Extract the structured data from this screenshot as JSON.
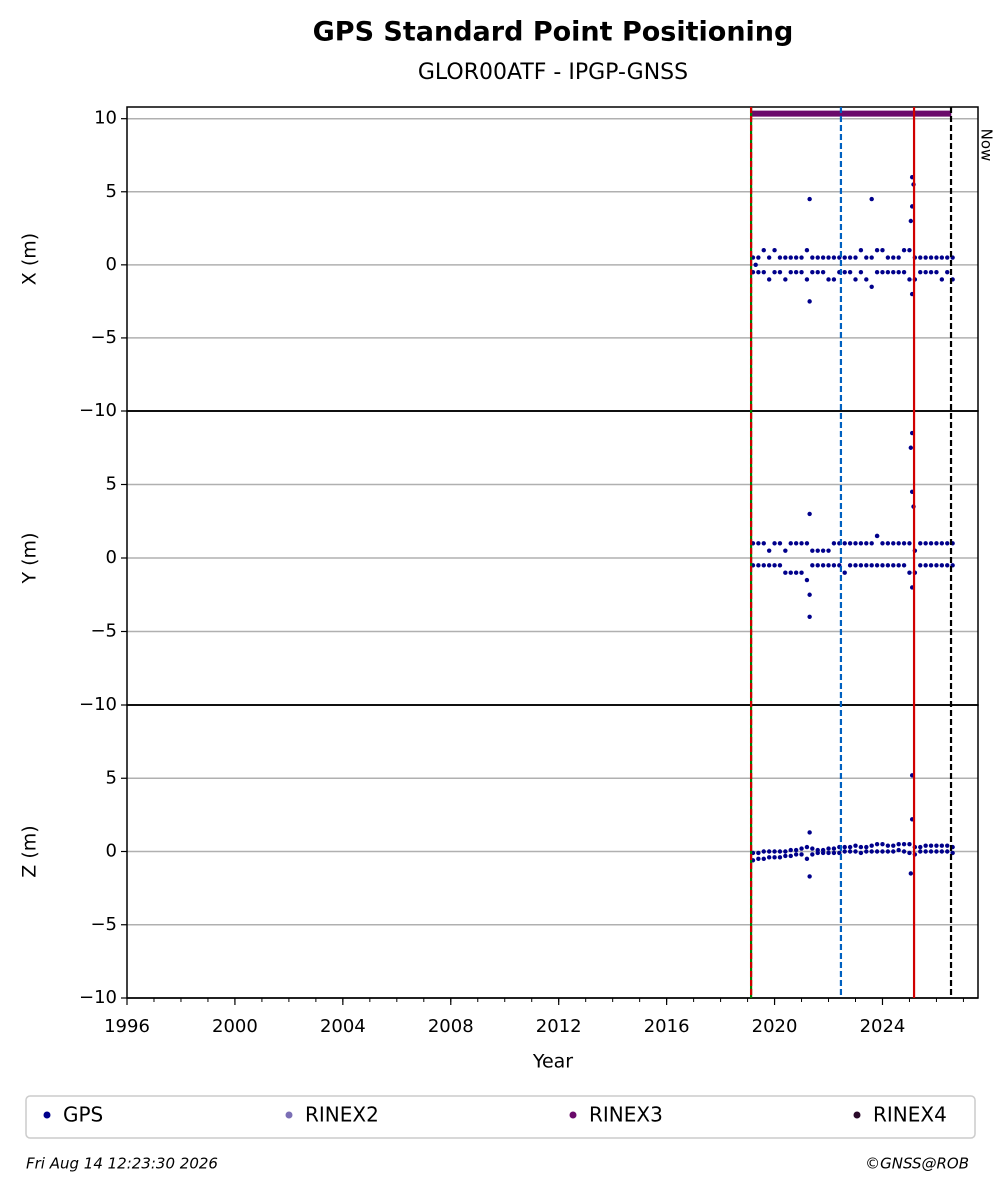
{
  "chart_data": {
    "type": "scatter",
    "title": "GPS Standard Point Positioning",
    "subtitle": "GLOR00ATF - IPGP-GNSS",
    "xlabel": "Year",
    "xlim": [
      1996,
      2027.54
    ],
    "xticks": [
      1996,
      2000,
      2004,
      2008,
      2012,
      2016,
      2020,
      2024
    ],
    "xminorticks": [
      1996,
      1997,
      1998,
      1999,
      2000,
      2001,
      2002,
      2003,
      2004,
      2005,
      2006,
      2007,
      2008,
      2009,
      2010,
      2011,
      2012,
      2013,
      2014,
      2015,
      2016,
      2017,
      2018,
      2019,
      2020,
      2021,
      2022,
      2023,
      2024,
      2025,
      2026,
      2027
    ],
    "grid": true,
    "panels": [
      {
        "ylabel": "X (m)",
        "ylim": [
          -10,
          10.8
        ],
        "yticks": [
          {
            "value": -10,
            "label": "−10"
          },
          {
            "value": -5,
            "label": "−5"
          },
          0,
          5,
          10
        ],
        "series": [
          {
            "name": "GPS",
            "color": "#00008b",
            "x": [
              2019.2,
              2019.4,
              2019.6,
              2019.8,
              2020.0,
              2020.2,
              2020.4,
              2020.6,
              2020.8,
              2021.0,
              2021.2,
              2021.4,
              2021.6,
              2021.8,
              2022.0,
              2022.2,
              2022.4,
              2022.6,
              2022.8,
              2023.0,
              2023.2,
              2023.4,
              2023.6,
              2023.8,
              2024.0,
              2024.2,
              2024.4,
              2024.6,
              2024.8,
              2025.0,
              2025.2,
              2025.4,
              2025.6,
              2025.8,
              2026.0,
              2026.2,
              2026.4,
              2026.6,
              2019.2,
              2019.4,
              2019.6,
              2019.8,
              2020.0,
              2020.2,
              2020.4,
              2020.6,
              2020.8,
              2021.0,
              2021.2,
              2021.4,
              2021.6,
              2021.8,
              2022.0,
              2022.2,
              2022.4,
              2022.6,
              2022.8,
              2023.0,
              2023.2,
              2023.4,
              2023.6,
              2023.8,
              2024.0,
              2024.2,
              2024.4,
              2024.6,
              2024.8,
              2025.0,
              2025.2,
              2025.4,
              2025.6,
              2025.8,
              2026.0,
              2026.2,
              2026.4,
              2026.6,
              2021.3,
              2021.3,
              2023.6,
              2025.1,
              2025.15,
              2025.1,
              2025.05,
              2025.1,
              2019.3
            ],
            "values": [
              0.5,
              0.5,
              1,
              0.5,
              1,
              0.5,
              0.5,
              0.5,
              0.5,
              0.5,
              1,
              0.5,
              0.5,
              0.5,
              0.5,
              0.5,
              0.5,
              0.5,
              0.5,
              0.5,
              1,
              0.5,
              0.5,
              1,
              1,
              0.5,
              0.5,
              0.5,
              1,
              1,
              0.5,
              0.5,
              0.5,
              0.5,
              0.5,
              0.5,
              0.5,
              0.5,
              -0.5,
              -0.5,
              -0.5,
              -1,
              -0.5,
              -0.5,
              -1,
              -0.5,
              -0.5,
              -0.5,
              -1,
              -0.5,
              -0.5,
              -0.5,
              -1,
              -1,
              -0.5,
              -0.5,
              -0.5,
              -1,
              -0.5,
              -1,
              -1.5,
              -0.5,
              -0.5,
              -0.5,
              -0.5,
              -0.5,
              -0.5,
              -1,
              -1,
              -0.5,
              -0.5,
              -0.5,
              -0.5,
              -1,
              -0.5,
              -1,
              4.5,
              -2.5,
              4.5,
              6,
              5.5,
              4,
              3,
              -2,
              0
            ]
          }
        ]
      },
      {
        "ylabel": "Y (m)",
        "ylim": [
          -10,
          10
        ],
        "yticks": [
          {
            "value": -10,
            "label": "−10"
          },
          {
            "value": -5,
            "label": "−5"
          },
          0,
          5
        ],
        "series": [
          {
            "name": "GPS",
            "color": "#00008b",
            "x": [
              2019.2,
              2019.4,
              2019.6,
              2019.8,
              2020.0,
              2020.2,
              2020.4,
              2020.6,
              2020.8,
              2021.0,
              2021.2,
              2021.4,
              2021.6,
              2021.8,
              2022.0,
              2022.2,
              2022.4,
              2022.6,
              2022.8,
              2023.0,
              2023.2,
              2023.4,
              2023.6,
              2023.8,
              2024.0,
              2024.2,
              2024.4,
              2024.6,
              2024.8,
              2025.0,
              2025.2,
              2025.4,
              2025.6,
              2025.8,
              2026.0,
              2026.2,
              2026.4,
              2026.6,
              2019.2,
              2019.4,
              2019.6,
              2019.8,
              2020.0,
              2020.2,
              2020.4,
              2020.6,
              2020.8,
              2021.0,
              2021.2,
              2021.4,
              2021.6,
              2021.8,
              2022.0,
              2022.2,
              2022.4,
              2022.6,
              2022.8,
              2023.0,
              2023.2,
              2023.4,
              2023.6,
              2023.8,
              2024.0,
              2024.2,
              2024.4,
              2024.6,
              2024.8,
              2025.0,
              2025.2,
              2025.4,
              2025.6,
              2025.8,
              2026.0,
              2026.2,
              2026.4,
              2026.6,
              2021.3,
              2021.3,
              2021.3,
              2025.1,
              2025.05,
              2025.1,
              2025.15,
              2025.1,
              2023.8
            ],
            "values": [
              1,
              1,
              1,
              0.5,
              1,
              1,
              0.5,
              1,
              1,
              1,
              1,
              0.5,
              0.5,
              0.5,
              0.5,
              1,
              1,
              1,
              1,
              1,
              1,
              1,
              1,
              1.5,
              1,
              1,
              1,
              1,
              1,
              1,
              0.5,
              1,
              1,
              1,
              1,
              1,
              1,
              1,
              -0.5,
              -0.5,
              -0.5,
              -0.5,
              -0.5,
              -0.5,
              -1,
              -1,
              -1,
              -1,
              -1.5,
              -0.5,
              -0.5,
              -0.5,
              -0.5,
              -0.5,
              -0.5,
              -1,
              -0.5,
              -0.5,
              -0.5,
              -0.5,
              -0.5,
              -0.5,
              -0.5,
              -0.5,
              -0.5,
              -0.5,
              -0.5,
              -1,
              -1,
              -0.5,
              -0.5,
              -0.5,
              -0.5,
              -0.5,
              -0.5,
              -0.5,
              3,
              -4,
              -2.5,
              8.5,
              7.5,
              4.5,
              3.5,
              -2,
              1.5
            ]
          }
        ]
      },
      {
        "ylabel": "Z (m)",
        "ylim": [
          -10,
          10
        ],
        "yticks": [
          {
            "value": -10,
            "label": "−10"
          },
          {
            "value": -5,
            "label": "−5"
          },
          0,
          5
        ],
        "series": [
          {
            "name": "GPS",
            "color": "#00008b",
            "x": [
              2019.2,
              2019.4,
              2019.6,
              2019.8,
              2020.0,
              2020.2,
              2020.4,
              2020.6,
              2020.8,
              2021.0,
              2021.2,
              2021.4,
              2021.6,
              2021.8,
              2022.0,
              2022.2,
              2022.4,
              2022.6,
              2022.8,
              2023.0,
              2023.2,
              2023.4,
              2023.6,
              2023.8,
              2024.0,
              2024.2,
              2024.4,
              2024.6,
              2024.8,
              2025.0,
              2025.2,
              2025.4,
              2025.6,
              2025.8,
              2026.0,
              2026.2,
              2026.4,
              2026.6,
              2019.2,
              2019.4,
              2019.6,
              2019.8,
              2020.0,
              2020.2,
              2020.4,
              2020.6,
              2020.8,
              2021.0,
              2021.2,
              2021.4,
              2021.6,
              2021.8,
              2022.0,
              2022.2,
              2022.4,
              2022.6,
              2022.8,
              2023.0,
              2023.2,
              2023.4,
              2023.6,
              2023.8,
              2024.0,
              2024.2,
              2024.4,
              2024.6,
              2024.8,
              2025.0,
              2025.2,
              2025.4,
              2025.6,
              2025.8,
              2026.0,
              2026.2,
              2026.4,
              2026.6,
              2021.3,
              2021.3,
              2025.1,
              2025.1,
              2025.05
            ],
            "values": [
              -0.1,
              -0.1,
              0,
              0,
              0,
              0,
              0,
              0.1,
              0.1,
              0.2,
              0.3,
              0.2,
              0.1,
              0.1,
              0.2,
              0.2,
              0.3,
              0.3,
              0.3,
              0.4,
              0.3,
              0.3,
              0.4,
              0.5,
              0.5,
              0.4,
              0.4,
              0.5,
              0.5,
              0.5,
              0.3,
              0.3,
              0.4,
              0.4,
              0.4,
              0.4,
              0.4,
              0.3,
              -0.6,
              -0.5,
              -0.5,
              -0.4,
              -0.4,
              -0.4,
              -0.3,
              -0.3,
              -0.2,
              -0.2,
              -0.5,
              -0.2,
              -0.1,
              -0.1,
              -0.1,
              -0.1,
              -0.1,
              0,
              0,
              0,
              -0.1,
              0,
              0,
              0,
              0,
              0,
              0,
              0.1,
              0,
              -0.1,
              -0.2,
              0,
              0,
              0,
              0,
              0,
              0,
              -0.1,
              1.3,
              -1.7,
              5.2,
              2.2,
              -1.5
            ]
          }
        ]
      }
    ],
    "availability": {
      "name": "RINEX3",
      "color": "#6a0a6a",
      "x": [
        2019.15,
        2026.55
      ],
      "y": 10.35
    },
    "vlines": [
      {
        "x": 2019.13,
        "color": "#008000",
        "dashed": false
      },
      {
        "x": 2019.13,
        "color": "#d00000",
        "dashed": true
      },
      {
        "x": 2022.46,
        "color": "#0060c0",
        "dashed": true
      },
      {
        "x": 2025.17,
        "color": "#d00000",
        "dashed": false
      },
      {
        "x": 2026.54,
        "color": "#000000",
        "dashed": true
      }
    ],
    "now_label": "Now",
    "legend": [
      {
        "name": "GPS",
        "color": "#00008b"
      },
      {
        "name": "RINEX2",
        "color": "#7b6fb5"
      },
      {
        "name": "RINEX3",
        "color": "#6a0a6a"
      },
      {
        "name": "RINEX4",
        "color": "#2a0a2a"
      }
    ],
    "footer": {
      "left": "Fri Aug 14 12:23:30 2026",
      "right": "©GNSS@ROB"
    }
  }
}
